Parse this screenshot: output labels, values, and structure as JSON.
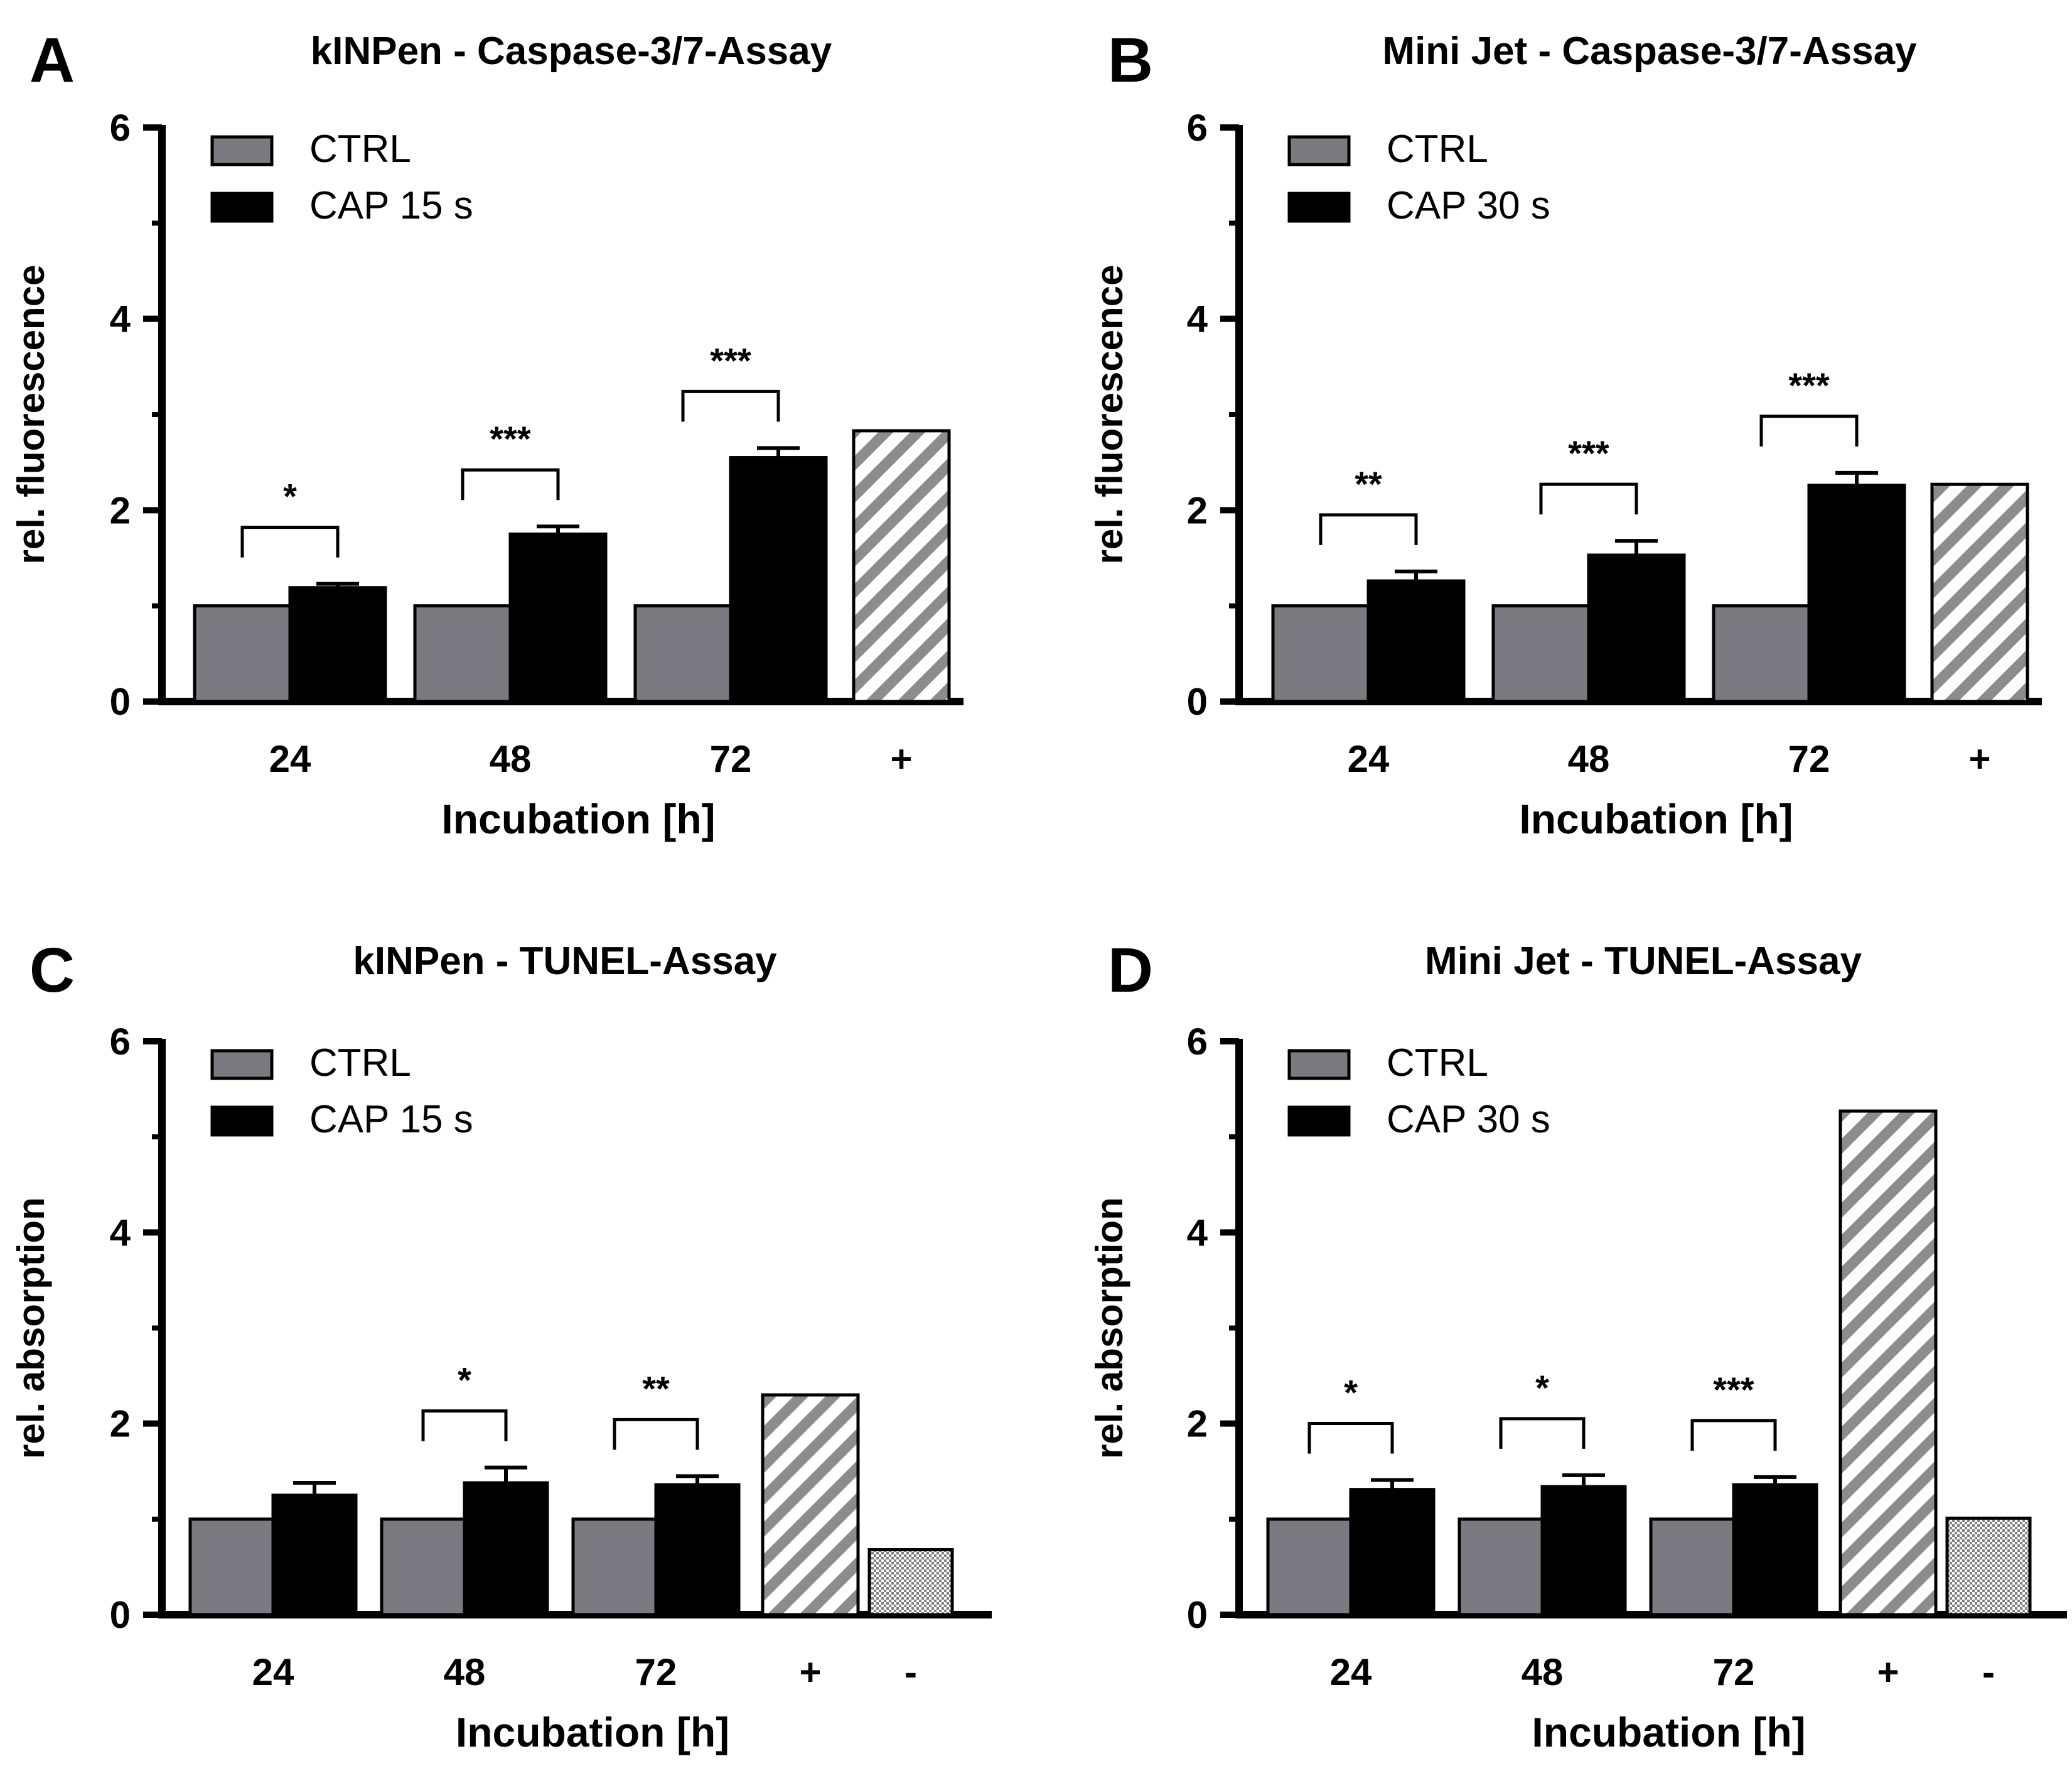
{
  "figure": {
    "colors": {
      "ctrl": "#7a7a80",
      "cap": "#000000",
      "positive_stripe": "#8c8c8c",
      "negative_dots": "#808080"
    },
    "chart_data": [
      {
        "panel": "A",
        "type": "bar",
        "title": "kINPen - Caspase-3/7-Assay",
        "ylabel": "rel. fluorescence",
        "xlabel": "Incubation [h]",
        "ylim": [
          0,
          6
        ],
        "yticks": [
          "0",
          "2",
          "4",
          "6"
        ],
        "categories": [
          "24",
          "48",
          "72"
        ],
        "series": [
          {
            "name": "CTRL",
            "values": [
              1.0,
              1.0,
              1.0
            ]
          },
          {
            "name": "CAP 15 s",
            "values": [
              1.19,
              1.75,
              2.55
            ],
            "errors": [
              0.04,
              0.08,
              0.1
            ]
          }
        ],
        "significance": [
          "*",
          "***",
          "***"
        ],
        "controls": [
          {
            "label": "+",
            "value": 2.83,
            "kind": "striped"
          }
        ]
      },
      {
        "panel": "B",
        "type": "bar",
        "title": "Mini Jet - Caspase-3/7-Assay",
        "ylabel": "rel. fluorescence",
        "xlabel": "Incubation [h]",
        "ylim": [
          0,
          6
        ],
        "yticks": [
          "0",
          "2",
          "4",
          "6"
        ],
        "categories": [
          "24",
          "48",
          "72"
        ],
        "series": [
          {
            "name": "CTRL",
            "values": [
              1.0,
              1.0,
              1.0
            ]
          },
          {
            "name": "CAP 30 s",
            "values": [
              1.26,
              1.53,
              2.26
            ],
            "errors": [
              0.1,
              0.15,
              0.13
            ]
          }
        ],
        "significance": [
          "**",
          "***",
          "***"
        ],
        "controls": [
          {
            "label": "+",
            "value": 2.27,
            "kind": "striped"
          }
        ]
      },
      {
        "panel": "C",
        "type": "bar",
        "title": "kINPen - TUNEL-Assay",
        "ylabel": "rel. absorption",
        "xlabel": "Incubation [h]",
        "ylim": [
          0,
          6
        ],
        "yticks": [
          "0",
          "2",
          "4",
          "6"
        ],
        "categories": [
          "24",
          "48",
          "72"
        ],
        "series": [
          {
            "name": "CTRL",
            "values": [
              1.0,
              1.0,
              1.0
            ]
          },
          {
            "name": "CAP 15 s",
            "values": [
              1.25,
              1.38,
              1.36
            ],
            "errors": [
              0.13,
              0.16,
              0.09
            ]
          }
        ],
        "significance": [
          "",
          "*",
          "**"
        ],
        "controls": [
          {
            "label": "+",
            "value": 2.3,
            "kind": "striped"
          },
          {
            "label": "-",
            "value": 0.68,
            "kind": "dotted"
          }
        ]
      },
      {
        "panel": "D",
        "type": "bar",
        "title": "Mini Jet - TUNEL-Assay",
        "ylabel": "rel. absorption",
        "xlabel": "Incubation [h]",
        "ylim": [
          0,
          6
        ],
        "yticks": [
          "0",
          "2",
          "4",
          "6"
        ],
        "categories": [
          "24",
          "48",
          "72"
        ],
        "series": [
          {
            "name": "CTRL",
            "values": [
              1.0,
              1.0,
              1.0
            ]
          },
          {
            "name": "CAP 30 s",
            "values": [
              1.31,
              1.34,
              1.36
            ],
            "errors": [
              0.1,
              0.12,
              0.08
            ]
          }
        ],
        "significance": [
          "*",
          "*",
          "***"
        ],
        "controls": [
          {
            "label": "+",
            "value": 5.27,
            "kind": "striped"
          },
          {
            "label": "-",
            "value": 1.01,
            "kind": "dotted"
          }
        ]
      }
    ]
  }
}
